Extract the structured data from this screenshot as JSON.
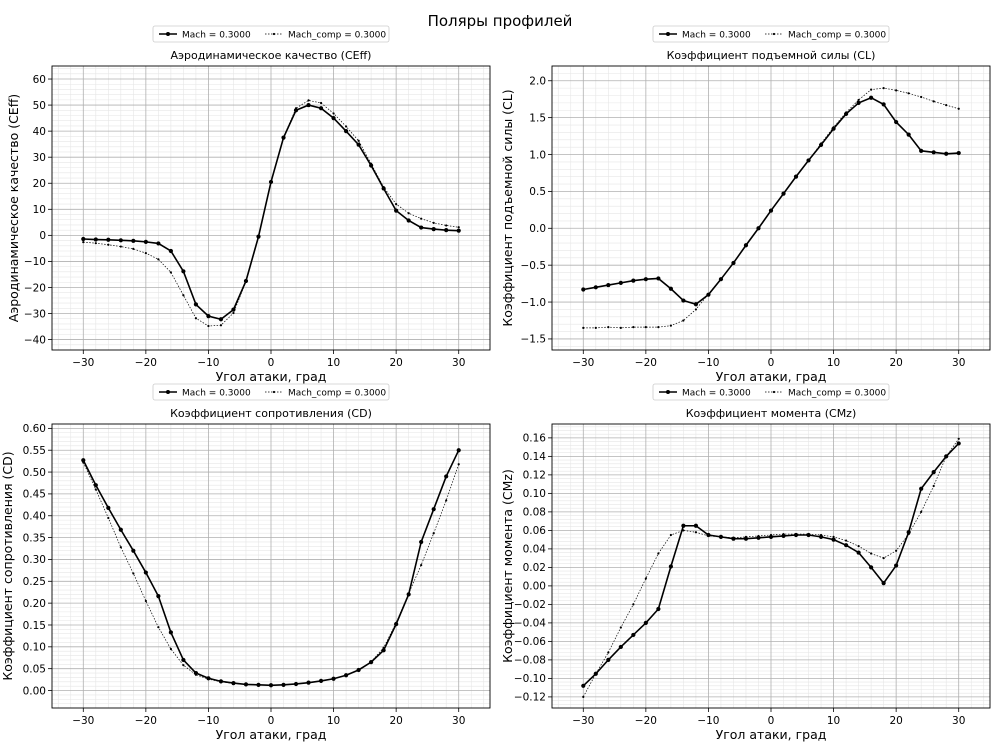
{
  "figure": {
    "suptitle": "Поляры профилей"
  },
  "colors": {
    "line": "#000000",
    "grid": "#b0b0b0",
    "minor_grid": "#e6e6e6",
    "frame": "#000000"
  },
  "chart_data": [
    {
      "type": "line",
      "title": "Аэродинамическое качество (CEff)",
      "xlabel": "Угол атаки, град",
      "ylabel": "Аэродинамическое качество (CEff)",
      "xlim": [
        -35,
        35
      ],
      "ylim": [
        -44,
        65
      ],
      "xticks": [
        -30,
        -20,
        -10,
        0,
        10,
        20,
        30
      ],
      "yticks": [
        -40,
        -30,
        -20,
        -10,
        0,
        10,
        20,
        30,
        40,
        50,
        60
      ],
      "tick_decimals": 0,
      "grid": true,
      "legend": "top-center",
      "x": [
        -30,
        -28,
        -26,
        -24,
        -22,
        -20,
        -18,
        -16,
        -14,
        -12,
        -10,
        -8,
        -6,
        -4,
        -2,
        0,
        2,
        4,
        6,
        8,
        10,
        12,
        14,
        16,
        18,
        20,
        22,
        24,
        26,
        28,
        30
      ],
      "series": [
        {
          "name": "Mach = 0.3000",
          "style": "bold",
          "values": [
            -1.4,
            -1.6,
            -1.7,
            -1.9,
            -2.1,
            -2.5,
            -3.1,
            -6.0,
            -13.8,
            -26.5,
            -31.0,
            -32.2,
            -28.5,
            -17.5,
            -0.5,
            20.5,
            37.5,
            48.0,
            50.0,
            48.8,
            45.0,
            40.0,
            34.8,
            26.8,
            18.0,
            9.5,
            5.7,
            3.0,
            2.4,
            2.0,
            1.8
          ]
        },
        {
          "name": "Mach_comp = 0.3000",
          "style": "thin",
          "values": [
            -2.6,
            -3.0,
            -3.6,
            -4.3,
            -5.2,
            -6.8,
            -9.2,
            -14.2,
            -23.0,
            -31.8,
            -34.8,
            -34.5,
            -29.8,
            -17.8,
            -0.5,
            20.5,
            37.7,
            48.8,
            51.8,
            50.8,
            46.8,
            41.8,
            36.3,
            27.5,
            18.5,
            12.0,
            8.5,
            6.4,
            4.8,
            3.8,
            3.1
          ]
        }
      ]
    },
    {
      "type": "line",
      "title": "Коэффициент подъемной силы (CL)",
      "xlabel": "Угол атаки, град",
      "ylabel": "Коэффициент подъемной силы (CL)",
      "xlim": [
        -35,
        35
      ],
      "ylim": [
        -1.65,
        2.2
      ],
      "xticks": [
        -30,
        -20,
        -10,
        0,
        10,
        20,
        30
      ],
      "yticks": [
        -1.5,
        -1.0,
        -0.5,
        0.0,
        0.5,
        1.0,
        1.5,
        2.0
      ],
      "tick_decimals": 1,
      "grid": true,
      "legend": "top-center",
      "x": [
        -30,
        -28,
        -26,
        -24,
        -22,
        -20,
        -18,
        -16,
        -14,
        -12,
        -10,
        -8,
        -6,
        -4,
        -2,
        0,
        2,
        4,
        6,
        8,
        10,
        12,
        14,
        16,
        18,
        20,
        22,
        24,
        26,
        28,
        30
      ],
      "series": [
        {
          "name": "Mach = 0.3000",
          "style": "bold",
          "values": [
            -0.83,
            -0.8,
            -0.77,
            -0.74,
            -0.71,
            -0.69,
            -0.68,
            -0.82,
            -0.98,
            -1.03,
            -0.9,
            -0.69,
            -0.47,
            -0.23,
            0.0,
            0.24,
            0.47,
            0.7,
            0.92,
            1.13,
            1.35,
            1.55,
            1.7,
            1.77,
            1.68,
            1.44,
            1.27,
            1.05,
            1.03,
            1.01,
            1.02
          ]
        },
        {
          "name": "Mach_comp = 0.3000",
          "style": "thin",
          "values": [
            -1.35,
            -1.35,
            -1.34,
            -1.35,
            -1.34,
            -1.34,
            -1.34,
            -1.32,
            -1.25,
            -1.1,
            -0.89,
            -0.69,
            -0.47,
            -0.23,
            0.0,
            0.24,
            0.47,
            0.7,
            0.92,
            1.15,
            1.37,
            1.57,
            1.74,
            1.88,
            1.9,
            1.87,
            1.83,
            1.78,
            1.72,
            1.67,
            1.62
          ]
        }
      ]
    },
    {
      "type": "line",
      "title": "Коэффициент сопротивления (CD)",
      "xlabel": "Угол атаки, град",
      "ylabel": "Коэффициент сопротивления (CD)",
      "xlim": [
        -35,
        35
      ],
      "ylim": [
        -0.04,
        0.61
      ],
      "xticks": [
        -30,
        -20,
        -10,
        0,
        10,
        20,
        30
      ],
      "yticks": [
        0.0,
        0.05,
        0.1,
        0.15,
        0.2,
        0.25,
        0.3,
        0.35,
        0.4,
        0.45,
        0.5,
        0.55,
        0.6
      ],
      "tick_decimals": 2,
      "grid": true,
      "legend": "top-center",
      "x": [
        -30,
        -28,
        -26,
        -24,
        -22,
        -20,
        -18,
        -16,
        -14,
        -12,
        -10,
        -8,
        -6,
        -4,
        -2,
        0,
        2,
        4,
        6,
        8,
        10,
        12,
        14,
        16,
        18,
        20,
        22,
        24,
        26,
        28,
        30
      ],
      "series": [
        {
          "name": "Mach = 0.3000",
          "style": "bold",
          "values": [
            0.527,
            0.47,
            0.418,
            0.368,
            0.32,
            0.27,
            0.216,
            0.133,
            0.07,
            0.04,
            0.028,
            0.021,
            0.017,
            0.014,
            0.013,
            0.012,
            0.013,
            0.015,
            0.018,
            0.022,
            0.027,
            0.035,
            0.047,
            0.065,
            0.092,
            0.152,
            0.22,
            0.34,
            0.415,
            0.49,
            0.55
          ]
        },
        {
          "name": "Mach_comp = 0.3000",
          "style": "thin",
          "values": [
            0.522,
            0.46,
            0.395,
            0.328,
            0.268,
            0.205,
            0.145,
            0.095,
            0.058,
            0.036,
            0.026,
            0.02,
            0.016,
            0.014,
            0.013,
            0.012,
            0.013,
            0.015,
            0.018,
            0.022,
            0.027,
            0.035,
            0.047,
            0.066,
            0.098,
            0.155,
            0.222,
            0.287,
            0.36,
            0.435,
            0.518
          ]
        }
      ]
    },
    {
      "type": "line",
      "title": "Коэффициент момента (CMz)",
      "xlabel": "Угол атаки, град",
      "ylabel": "Коэффициент момента (CMz)",
      "xlim": [
        -35,
        35
      ],
      "ylim": [
        -0.132,
        0.175
      ],
      "xticks": [
        -30,
        -20,
        -10,
        0,
        10,
        20,
        30
      ],
      "yticks": [
        -0.12,
        -0.1,
        -0.08,
        -0.06,
        -0.04,
        -0.02,
        0.0,
        0.02,
        0.04,
        0.06,
        0.08,
        0.1,
        0.12,
        0.14,
        0.16
      ],
      "tick_decimals": 2,
      "grid": true,
      "legend": "top-center",
      "x": [
        -30,
        -28,
        -26,
        -24,
        -22,
        -20,
        -18,
        -16,
        -14,
        -12,
        -10,
        -8,
        -6,
        -4,
        -2,
        0,
        2,
        4,
        6,
        8,
        10,
        12,
        14,
        16,
        18,
        20,
        22,
        24,
        26,
        28,
        30
      ],
      "series": [
        {
          "name": "Mach = 0.3000",
          "style": "bold",
          "values": [
            -0.108,
            -0.095,
            -0.08,
            -0.066,
            -0.053,
            -0.04,
            -0.025,
            0.021,
            0.065,
            0.065,
            0.055,
            0.053,
            0.051,
            0.051,
            0.052,
            0.053,
            0.054,
            0.055,
            0.055,
            0.053,
            0.05,
            0.044,
            0.036,
            0.02,
            0.003,
            0.022,
            0.058,
            0.105,
            0.123,
            0.14,
            0.154
          ]
        },
        {
          "name": "Mach_comp = 0.3000",
          "style": "thin",
          "values": [
            -0.12,
            -0.095,
            -0.072,
            -0.045,
            -0.02,
            0.008,
            0.035,
            0.055,
            0.06,
            0.058,
            0.054,
            0.053,
            0.052,
            0.053,
            0.054,
            0.055,
            0.056,
            0.056,
            0.056,
            0.055,
            0.053,
            0.049,
            0.043,
            0.035,
            0.03,
            0.038,
            0.056,
            0.08,
            0.108,
            0.14,
            0.159
          ]
        }
      ]
    }
  ]
}
